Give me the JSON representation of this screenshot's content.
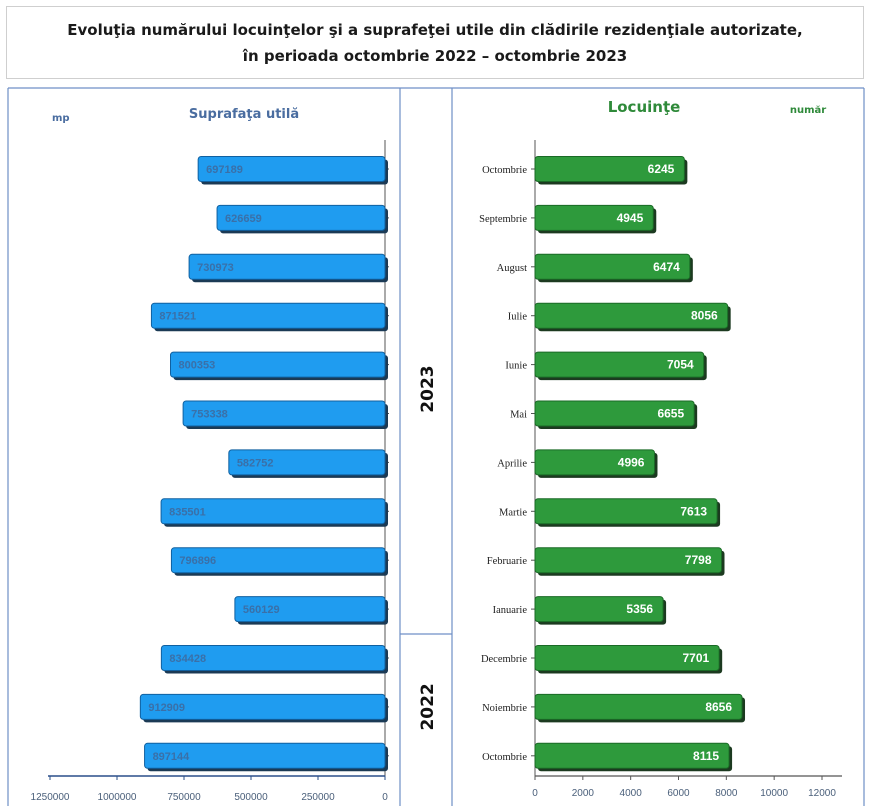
{
  "title": {
    "line1": "Evoluţia numărului locuinţelor şi a suprafeţei utile din clădirile rezidenţiale autorizate,",
    "line2": "în perioada octombrie 2022 – octombrie 2023"
  },
  "colors": {
    "left_bar": "#1f9cf0",
    "right_bar": "#2e9a3c",
    "frame": "#6f8fc6"
  },
  "chart_data": [
    {
      "type": "bar",
      "orientation": "horizontal",
      "direction": "right-to-left",
      "title": "Suprafaţa utilă",
      "unit": "mp",
      "categories": [
        "Octombrie",
        "Septembrie",
        "August",
        "Iulie",
        "Iunie",
        "Mai",
        "Aprilie",
        "Martie",
        "Februarie",
        "Ianuarie",
        "Decembrie",
        "Noiembrie",
        "Octombrie"
      ],
      "values": [
        697189,
        626659,
        730973,
        871521,
        800353,
        753338,
        582752,
        835501,
        796896,
        560129,
        834428,
        912909,
        897144
      ],
      "labels": [
        "697189",
        "626659",
        "730973",
        "871521",
        "800353",
        "753338",
        "582752",
        "835501",
        "796896",
        "560129",
        "834428",
        "912909",
        "897144"
      ],
      "xlim": [
        0,
        1250000
      ],
      "xticks": [
        0,
        250000,
        500000,
        750000,
        1000000,
        1250000
      ],
      "xtick_labels": [
        "0",
        "250000",
        "500000",
        "750000",
        "1000000",
        "1250000"
      ]
    },
    {
      "type": "bar",
      "orientation": "horizontal",
      "title": "Locuinţe",
      "unit": "număr",
      "categories": [
        "Octombrie",
        "Septembrie",
        "August",
        "Iulie",
        "Iunie",
        "Mai",
        "Aprilie",
        "Martie",
        "Februarie",
        "Ianuarie",
        "Decembrie",
        "Noiembrie",
        "Octombrie"
      ],
      "values": [
        6245,
        4945,
        6474,
        8056,
        7054,
        6655,
        4996,
        7613,
        7798,
        5356,
        7701,
        8656,
        8115
      ],
      "labels": [
        "6245",
        "4945",
        "6474",
        "8056",
        "7054",
        "6655",
        "4996",
        "7613",
        "7798",
        "5356",
        "7701",
        "8656",
        "8115"
      ],
      "xlim": [
        0,
        12000
      ],
      "xticks": [
        0,
        2000,
        4000,
        6000,
        8000,
        10000,
        12000
      ],
      "xtick_labels": [
        "0",
        "2000",
        "4000",
        "6000",
        "8000",
        "10000",
        "12000"
      ]
    }
  ],
  "years": [
    {
      "label": "2023",
      "count": 10
    },
    {
      "label": "2022",
      "count": 3
    }
  ]
}
